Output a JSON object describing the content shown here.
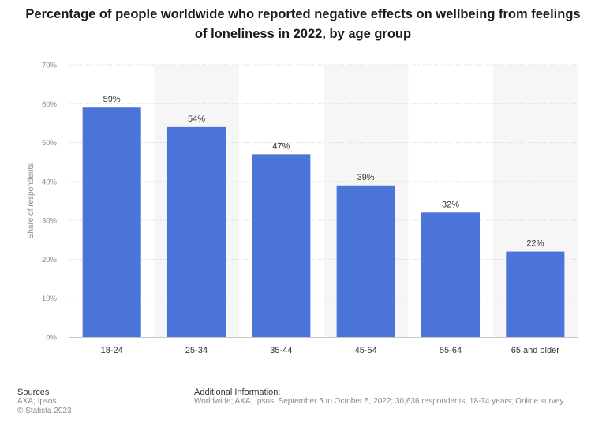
{
  "chart_data": {
    "type": "bar",
    "title": "Percentage of people worldwide who reported negative effects on wellbeing from feelings of loneliness in 2022, by age group",
    "xlabel": "",
    "ylabel": "Share of respondents",
    "categories": [
      "18-24",
      "25-34",
      "35-44",
      "45-54",
      "55-64",
      "65 and older"
    ],
    "values": [
      59,
      54,
      47,
      39,
      32,
      22
    ],
    "value_labels": [
      "59%",
      "54%",
      "47%",
      "39%",
      "32%",
      "22%"
    ],
    "ylim": [
      0,
      70
    ],
    "yticks": [
      0,
      10,
      20,
      30,
      40,
      50,
      60,
      70
    ],
    "ytick_labels": [
      "0%",
      "10%",
      "20%",
      "30%",
      "40%",
      "50%",
      "60%",
      "70%"
    ],
    "bar_color": "#4a74d8",
    "band_color": "#f6f6f6",
    "grid": true
  },
  "footer": {
    "sources_heading": "Sources",
    "sources_lines": [
      "AXA; Ipsos",
      "© Statista 2023"
    ],
    "additional_heading": "Additional Information:",
    "additional_text": "Worldwide; AXA; Ipsos; September 5 to October 5, 2022; 30,636 respondents; 18-74 years; Online survey"
  }
}
